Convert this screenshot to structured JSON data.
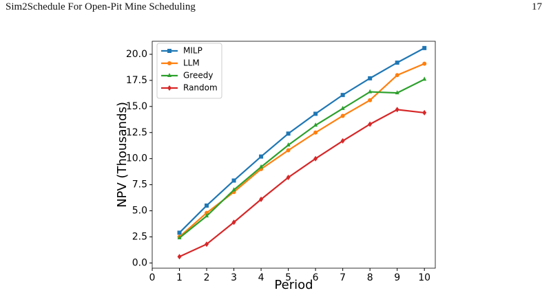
{
  "header": {
    "title": "Sim2Schedule For Open-Pit Mine Scheduling",
    "page_number": "17"
  },
  "chart_data": {
    "type": "line",
    "xlabel": "Period",
    "ylabel": "NPV (Thousands)",
    "x": [
      1,
      2,
      3,
      4,
      5,
      6,
      7,
      8,
      9,
      10
    ],
    "xlim": [
      0,
      10.4
    ],
    "xticks": [
      0,
      1,
      2,
      3,
      4,
      5,
      6,
      7,
      8,
      9,
      10
    ],
    "ylim": [
      -0.5,
      21.25
    ],
    "yticks": [
      {
        "value": 0,
        "label": "0.0"
      },
      {
        "value": 2.5,
        "label": "2.5"
      },
      {
        "value": 5,
        "label": "5.0"
      },
      {
        "value": 7.5,
        "label": "7.5"
      },
      {
        "value": 10,
        "label": "10.0"
      },
      {
        "value": 12.5,
        "label": "12.5"
      },
      {
        "value": 15,
        "label": "15.0"
      },
      {
        "value": 17.5,
        "label": "17.5"
      },
      {
        "value": 20,
        "label": "20.0"
      }
    ],
    "legend": "upper left",
    "series": [
      {
        "name": "MILP",
        "color": "#1f77b4",
        "marker": "square",
        "values": [
          2.9,
          5.5,
          7.9,
          10.2,
          12.4,
          14.3,
          16.1,
          17.7,
          19.2,
          20.6
        ]
      },
      {
        "name": "LLM",
        "color": "#ff7f0e",
        "marker": "circle",
        "values": [
          2.5,
          4.8,
          6.8,
          9.0,
          10.8,
          12.5,
          14.1,
          15.6,
          18.0,
          19.1
        ]
      },
      {
        "name": "Greedy",
        "color": "#2ca02c",
        "marker": "triangle",
        "values": [
          2.4,
          4.5,
          7.0,
          9.2,
          11.3,
          13.2,
          14.8,
          16.4,
          16.3,
          17.6
        ]
      },
      {
        "name": "Random",
        "color": "#d62728",
        "marker": "diamond",
        "values": [
          0.6,
          1.8,
          3.9,
          6.1,
          8.2,
          10.0,
          11.7,
          13.3,
          14.7,
          14.4
        ]
      }
    ]
  }
}
